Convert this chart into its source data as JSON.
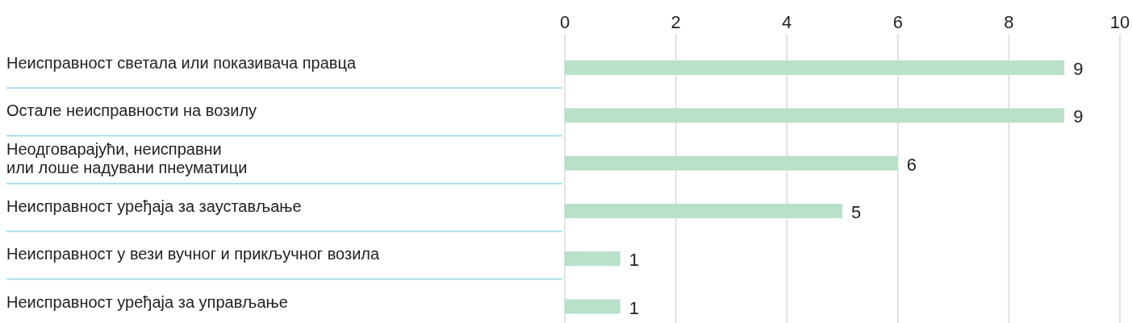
{
  "chart_data": {
    "type": "bar",
    "orientation": "horizontal",
    "categories": [
      "Неисправност светала или показивача правца",
      "Остале неисправности на возилу",
      "Неодговарајући, неисправни\nили лоше надувани пнеуматици",
      "Неисправност уређаја за заустављање",
      "Неисправност у вези вучног и прикључног возила",
      "Неисправност уређаја за управљање"
    ],
    "values": [
      9,
      9,
      6,
      5,
      1,
      1
    ],
    "color": "#b9e1ca",
    "xlim": [
      0,
      10
    ],
    "x2lim": [
      0,
      10
    ],
    "x2ticks": [
      0,
      2,
      4,
      6,
      8,
      10
    ],
    "grid": "x",
    "data_labels": true
  }
}
